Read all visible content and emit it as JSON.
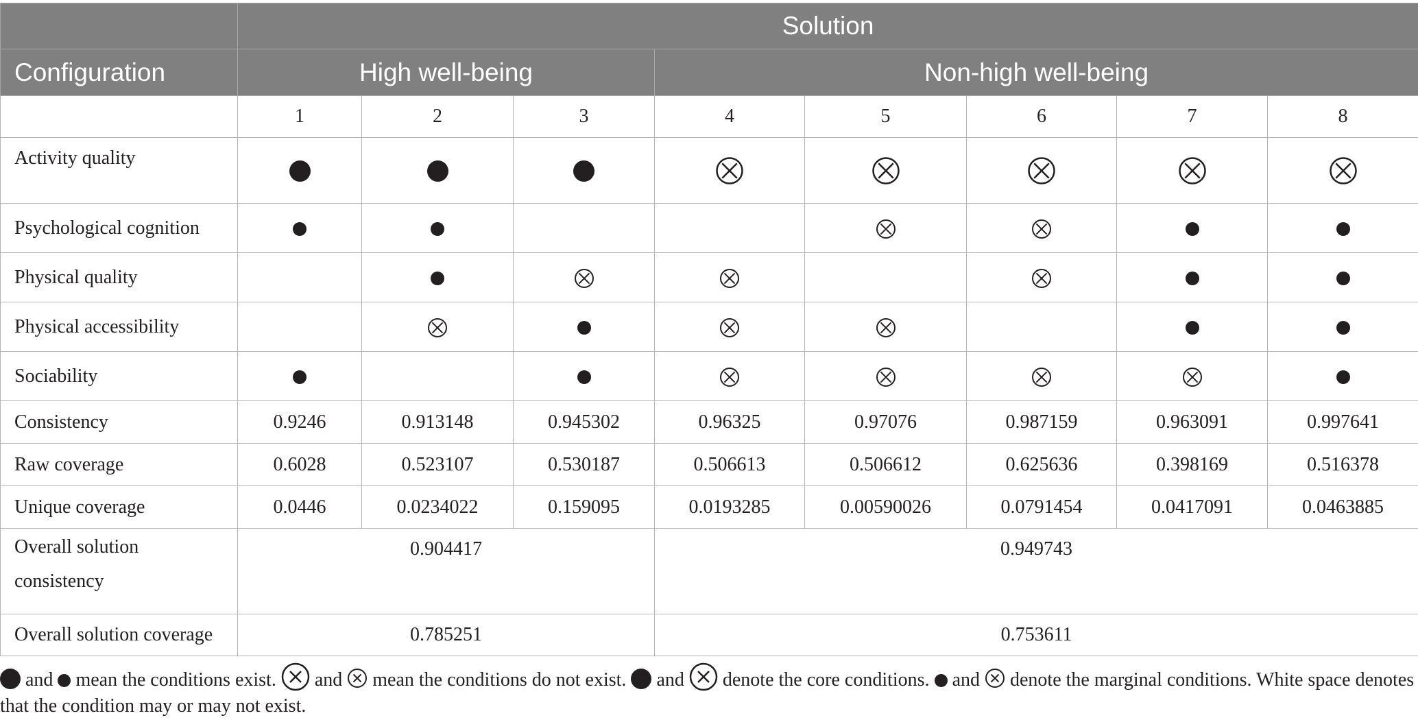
{
  "header": {
    "solution": "Solution",
    "configuration": "Configuration",
    "high_group": "High well-being",
    "nonhigh_group": "Non-high well-being"
  },
  "solution_numbers": [
    "1",
    "2",
    "3",
    "4",
    "5",
    "6",
    "7",
    "8"
  ],
  "legend": {
    "big_dot": "core condition present",
    "small_dot": "marginal condition present",
    "big_x": "core condition absent",
    "small_x": "marginal condition absent"
  },
  "conditions": [
    {
      "label": "Activity quality",
      "core": true,
      "cells": [
        "big_dot",
        "big_dot",
        "big_dot",
        "big_x",
        "big_x",
        "big_x",
        "big_x",
        "big_x"
      ]
    },
    {
      "label": "Psychological cognition",
      "core": false,
      "cells": [
        "small_dot",
        "small_dot",
        "",
        "",
        "small_x",
        "small_x",
        "small_dot",
        "small_dot"
      ]
    },
    {
      "label": "Physical quality",
      "core": false,
      "cells": [
        "",
        "small_dot",
        "small_x",
        "small_x",
        "",
        "small_x",
        "small_dot",
        "small_dot"
      ]
    },
    {
      "label": "Physical accessibility",
      "core": false,
      "cells": [
        "",
        "small_x",
        "small_dot",
        "small_x",
        "small_x",
        "",
        "small_dot",
        "small_dot"
      ]
    },
    {
      "label": "Sociability",
      "core": false,
      "cells": [
        "small_dot",
        "",
        "small_dot",
        "small_x",
        "small_x",
        "small_x",
        "small_x",
        "small_dot"
      ]
    }
  ],
  "metrics": [
    {
      "label": "Consistency",
      "values": [
        "0.9246",
        "0.913148",
        "0.945302",
        "0.96325",
        "0.97076",
        "0.987159",
        "0.963091",
        "0.997641"
      ]
    },
    {
      "label": "Raw coverage",
      "values": [
        "0.6028",
        "0.523107",
        "0.530187",
        "0.506613",
        "0.506612",
        "0.625636",
        "0.398169",
        "0.516378"
      ]
    },
    {
      "label": "Unique coverage",
      "values": [
        "0.0446",
        "0.0234022",
        "0.159095",
        "0.0193285",
        "0.00590026",
        "0.0791454",
        "0.0417091",
        "0.0463885"
      ]
    }
  ],
  "overall": [
    {
      "label_line1": "Overall solution",
      "label_line2": "consistency",
      "high": "0.904417",
      "nonhigh": "0.949743"
    },
    {
      "label": "Overall solution coverage",
      "high": "0.785251",
      "nonhigh": "0.753611"
    }
  ],
  "note": {
    "and": "and",
    "exist": "mean the conditions exist.",
    "not_exist": "mean the conditions do not exist.",
    "core": "denote the core conditions.",
    "marginal": "denote the marginal conditions. White space denotes",
    "line2": "that the condition may or may not exist."
  }
}
